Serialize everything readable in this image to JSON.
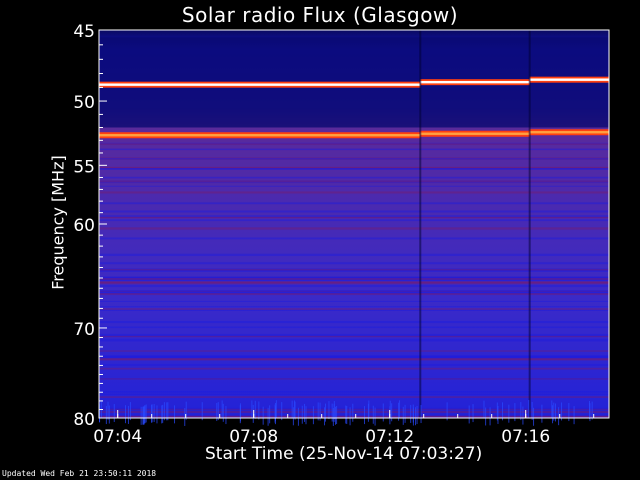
{
  "chart_data": {
    "type": "heatmap",
    "title": "Solar radio Flux (Glasgow)",
    "xlabel": "Start Time (25-Nov-14 07:03:27)",
    "ylabel": "Frequency [MHz]",
    "x_ticks": [
      "07:04",
      "07:08",
      "07:12",
      "07:16"
    ],
    "y_ticks": [
      45,
      50,
      55,
      60,
      70,
      80
    ],
    "ylim": [
      45,
      80
    ],
    "y_scale": "log",
    "xlim": [
      "07:03:27",
      "07:18:27"
    ],
    "colormap": "blue-purple-red-yellow",
    "bright_lines_mhz": [
      48.8,
      52.6
    ],
    "segment_breaks": [
      "07:12:54",
      "07:16:07"
    ],
    "grid": false
  },
  "footer": {
    "updated": "Updated Wed Feb 21 23:50:11 2018"
  }
}
